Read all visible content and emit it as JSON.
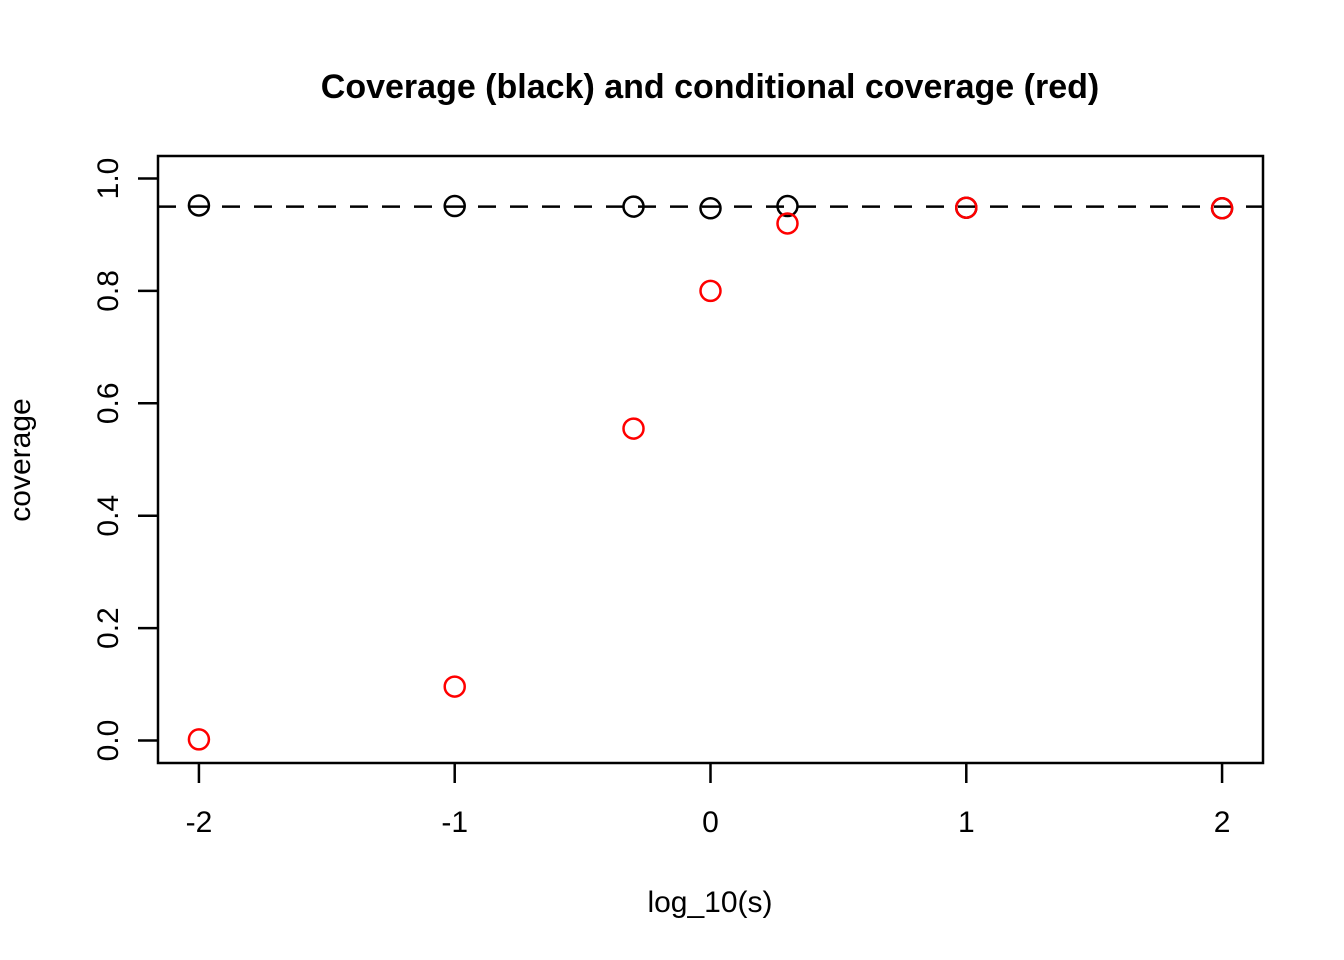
{
  "figure": {
    "background": "#ffffff",
    "foreground": "#000000"
  },
  "chart_data": {
    "type": "scatter",
    "title": "Coverage (black) and conditional coverage (red)",
    "xlabel": "log_10(s)",
    "ylabel": "coverage",
    "xlim": [
      -2.16,
      2.16
    ],
    "ylim": [
      -0.04,
      1.04
    ],
    "x_ticks": [
      {
        "value": -2,
        "label": "-2"
      },
      {
        "value": -1,
        "label": "-1"
      },
      {
        "value": 0,
        "label": "0"
      },
      {
        "value": 1,
        "label": "1"
      },
      {
        "value": 2,
        "label": "2"
      }
    ],
    "y_ticks": [
      {
        "value": 0.0,
        "label": "0.0"
      },
      {
        "value": 0.2,
        "label": "0.2"
      },
      {
        "value": 0.4,
        "label": "0.4"
      },
      {
        "value": 0.6,
        "label": "0.6"
      },
      {
        "value": 0.8,
        "label": "0.8"
      },
      {
        "value": 1.0,
        "label": "1.0"
      }
    ],
    "grid": false,
    "legend": "none",
    "marker": "open-circle",
    "reference_line": {
      "y": 0.95,
      "style": "dashed",
      "color": "#000000"
    },
    "series": [
      {
        "name": "coverage",
        "color": "#000000",
        "x": [
          -2,
          -1,
          -0.301,
          0,
          0.301,
          1,
          2
        ],
        "y": [
          0.952,
          0.951,
          0.95,
          0.947,
          0.951,
          0.948,
          0.947
        ]
      },
      {
        "name": "conditional coverage",
        "color": "#ff0000",
        "x": [
          -2,
          -1,
          -0.301,
          0,
          0.301,
          1,
          2
        ],
        "y": [
          0.002,
          0.096,
          0.555,
          0.8,
          0.92,
          0.948,
          0.947
        ]
      }
    ]
  }
}
